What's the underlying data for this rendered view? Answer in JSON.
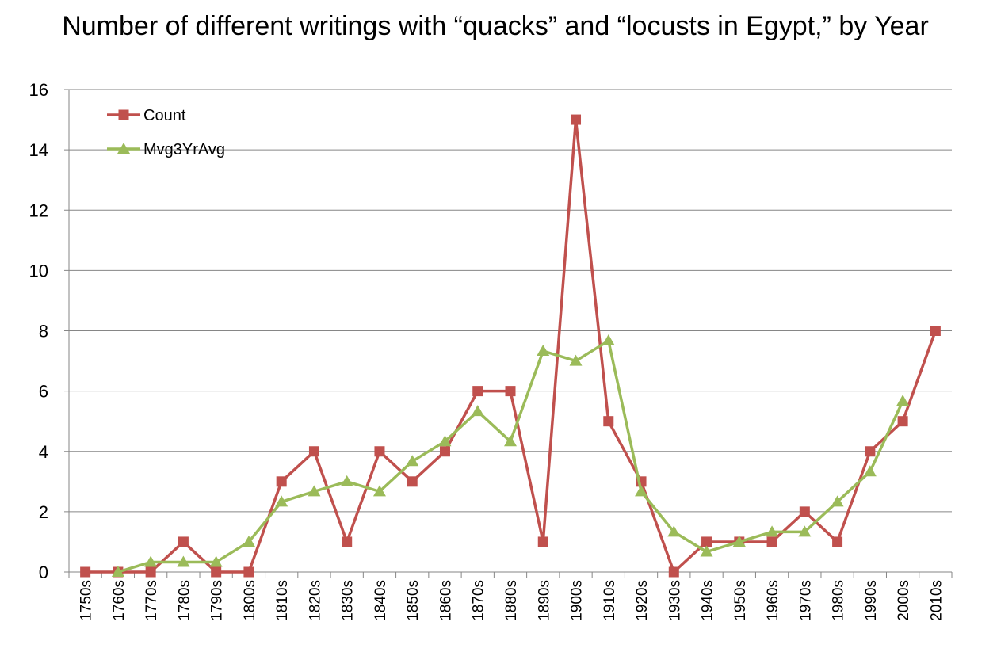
{
  "chart_data": {
    "type": "line",
    "title": "Number of different writings with “quacks” and “locusts in Egypt,” by Year",
    "xlabel": "",
    "ylabel": "",
    "categories": [
      "1750s",
      "1760s",
      "1770s",
      "1780s",
      "1790s",
      "1800s",
      "1810s",
      "1820s",
      "1830s",
      "1840s",
      "1850s",
      "1860s",
      "1870s",
      "1880s",
      "1890s",
      "1900s",
      "1910s",
      "1920s",
      "1930s",
      "1940s",
      "1950s",
      "1960s",
      "1970s",
      "1980s",
      "1990s",
      "2000s",
      "2010s"
    ],
    "ylim": [
      0,
      16
    ],
    "yticks": [
      0,
      2,
      4,
      6,
      8,
      10,
      12,
      14,
      16
    ],
    "grid": true,
    "legend_position": "top-left",
    "series": [
      {
        "name": "Count",
        "color": "#C0504D",
        "marker": "square",
        "values": [
          0,
          0,
          0,
          1,
          0,
          0,
          3,
          4,
          1,
          4,
          3,
          4,
          6,
          6,
          1,
          15,
          5,
          3,
          0,
          1,
          1,
          1,
          2,
          1,
          4,
          5,
          8
        ]
      },
      {
        "name": "Mvg3YrAvg",
        "color": "#9BBB59",
        "marker": "triangle",
        "values": [
          null,
          0,
          0.33,
          0.33,
          0.33,
          1,
          2.33,
          2.67,
          3,
          2.67,
          3.67,
          4.33,
          5.33,
          4.33,
          7.33,
          7,
          7.67,
          2.67,
          1.33,
          0.67,
          1,
          1.33,
          1.33,
          2.33,
          3.33,
          5.67,
          null
        ]
      }
    ]
  }
}
